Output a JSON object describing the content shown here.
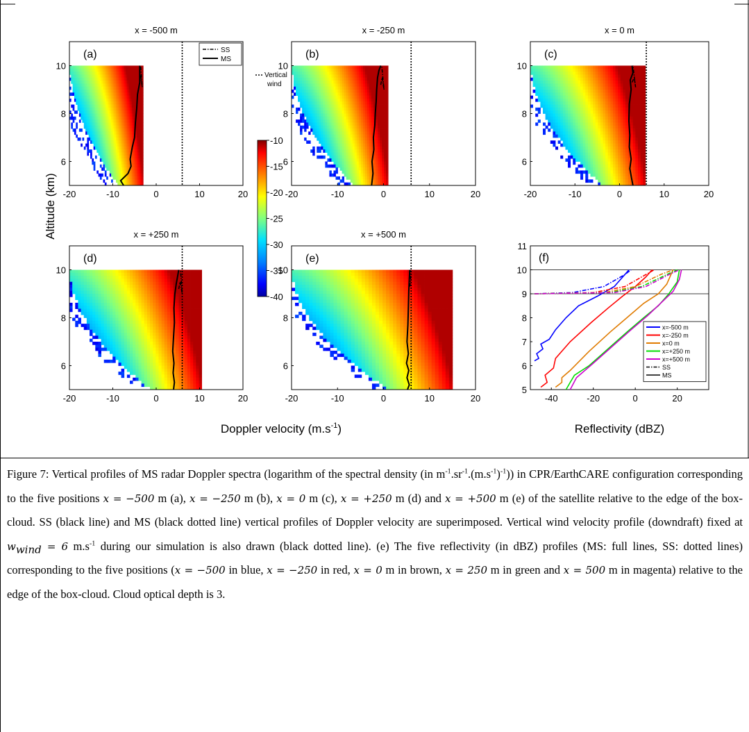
{
  "chart_data": [
    {
      "type": "heatmap",
      "panel": "(a)",
      "title": "x = -500 m",
      "x_range": [
        -20,
        20
      ],
      "y_range": [
        5,
        11
      ],
      "spectrum_x_range": [
        -20,
        -3
      ],
      "edge_x": -3,
      "xticks": [
        "-20",
        "-10",
        "0",
        "10",
        "20"
      ],
      "yticks": [
        "6",
        "8",
        "10"
      ],
      "vertical_wind": 6,
      "ms_profile": {
        "x": [
          -7.5,
          -8.2,
          -6.5,
          -5.8,
          -6.0,
          -5.5,
          -5.0,
          -4.8,
          -4.5,
          -4.3,
          -3.8,
          -3.8
        ],
        "y": [
          5.0,
          5.2,
          5.5,
          5.8,
          6.1,
          6.6,
          7.0,
          7.6,
          8.2,
          8.8,
          9.3,
          10.0
        ]
      },
      "ss_profile": {
        "x": [
          -3.8,
          -3.6,
          -3.2,
          -3.6
        ],
        "y": [
          9.3,
          9.6,
          9.1,
          10.0
        ]
      }
    },
    {
      "type": "heatmap",
      "panel": "(b)",
      "title": "x = -250 m",
      "x_range": [
        -20,
        20
      ],
      "y_range": [
        5,
        11
      ],
      "spectrum_x_range": [
        -20,
        1
      ],
      "edge_x": 1,
      "xticks": [
        "-20",
        "-10",
        "0",
        "10",
        "20"
      ],
      "yticks": [
        "6",
        "8",
        "10"
      ],
      "vertical_wind": 6,
      "ms_profile": {
        "x": [
          -2.6,
          -2.3,
          -2.5,
          -2.1,
          -2.2,
          -1.9,
          -1.8,
          -1.6,
          -1.5,
          -1.3,
          -1.0,
          -0.6
        ],
        "y": [
          5.0,
          5.5,
          6.0,
          6.5,
          7.0,
          7.5,
          8.0,
          8.5,
          9.0,
          9.5,
          9.8,
          10.0
        ]
      },
      "ss_profile": {
        "x": [
          -0.6,
          -0.3,
          0.1,
          -0.4
        ],
        "y": [
          9.2,
          9.5,
          9.0,
          10.0
        ]
      }
    },
    {
      "type": "heatmap",
      "panel": "(c)",
      "title": "x = 0 m",
      "x_range": [
        -20,
        20
      ],
      "y_range": [
        5,
        11
      ],
      "spectrum_x_range": [
        -20,
        5.8
      ],
      "edge_x": 5.8,
      "xticks": [
        "-20",
        "-10",
        "0",
        "10",
        "20"
      ],
      "yticks": [
        "6",
        "8",
        "10"
      ],
      "vertical_wind": 6,
      "ms_profile": {
        "x": [
          3.0,
          2.7,
          2.3,
          2.6,
          2.2,
          2.3,
          2.1,
          2.2,
          2.6,
          2.4,
          3.0,
          2.8
        ],
        "y": [
          5.0,
          5.3,
          5.7,
          6.1,
          6.6,
          7.1,
          7.7,
          8.4,
          9.0,
          9.4,
          9.7,
          10.0
        ]
      },
      "ss_profile": {
        "x": [
          2.8,
          3.3,
          3.6,
          3.0
        ],
        "y": [
          9.3,
          9.5,
          9.1,
          10.0
        ]
      }
    },
    {
      "type": "heatmap",
      "panel": "(d)",
      "title": "x = +250 m",
      "x_range": [
        -20,
        20
      ],
      "y_range": [
        5,
        11
      ],
      "spectrum_x_range": [
        -20,
        10.5
      ],
      "edge_x": 10.5,
      "xticks": [
        "-20",
        "-10",
        "0",
        "10",
        "20"
      ],
      "yticks": [
        "6",
        "8",
        "10"
      ],
      "vertical_wind": 6,
      "ms_profile": {
        "x": [
          4.0,
          4.2,
          3.9,
          4.1,
          3.8,
          4.0,
          4.2,
          4.1,
          4.3,
          4.6,
          5.0,
          5.2
        ],
        "y": [
          5.0,
          5.3,
          5.7,
          6.1,
          6.6,
          7.2,
          7.8,
          8.4,
          9.0,
          9.4,
          9.8,
          10.0
        ]
      },
      "ss_profile": {
        "x": [
          5.2,
          5.5,
          6.0,
          5.6
        ],
        "y": [
          9.2,
          9.5,
          9.0,
          10.0
        ]
      }
    },
    {
      "type": "heatmap",
      "panel": "(e)",
      "title": "x = +500 m",
      "x_range": [
        -20,
        20
      ],
      "y_range": [
        5,
        11
      ],
      "spectrum_x_range": [
        -20,
        15
      ],
      "edge_x": 15,
      "xticks": [
        "-20",
        "-10",
        "0",
        "10",
        "20"
      ],
      "yticks": [
        "6",
        "8",
        "10"
      ],
      "vertical_wind": 6,
      "ms_profile": {
        "x": [
          5.2,
          5.6,
          5.1,
          5.5,
          5.0,
          5.4,
          5.1,
          5.3,
          5.4,
          5.5,
          5.6,
          5.7
        ],
        "y": [
          5.0,
          5.2,
          5.5,
          5.8,
          6.1,
          6.5,
          7.0,
          7.7,
          8.4,
          9.1,
          9.6,
          10.0
        ]
      },
      "ss_profile": {
        "x": [
          5.7,
          5.9,
          5.8
        ],
        "y": [
          9.3,
          9.6,
          10.0
        ]
      }
    },
    {
      "type": "line",
      "panel": "(f)",
      "xlabel": "Reflectivity (dBZ)",
      "x_range": [
        -50,
        35
      ],
      "y_range": [
        5,
        11
      ],
      "xticks": [
        "-40",
        "-20",
        "0",
        "20"
      ],
      "yticks": [
        "5",
        "6",
        "7",
        "8",
        "9",
        "10",
        "11"
      ],
      "hlines": [
        9,
        10
      ],
      "series": [
        {
          "name": "x=-500 m",
          "color": "#0000ff",
          "ms": {
            "x": [
              -48,
              -46,
              -47,
              -44,
              -45,
              -41,
              -38,
              -33,
              -27,
              -18,
              -10,
              -5,
              -3
            ],
            "y": [
              6.2,
              6.3,
              6.5,
              6.7,
              6.9,
              7.1,
              7.5,
              8.0,
              8.5,
              8.9,
              9.3,
              9.8,
              10.0
            ]
          },
          "ss": {
            "x": [
              -48,
              -30,
              -15,
              -5,
              -2
            ],
            "y": [
              9.0,
              9.05,
              9.3,
              9.8,
              10.0
            ]
          }
        },
        {
          "name": "x=-250 m",
          "color": "#ff0000",
          "ms": {
            "x": [
              -45,
              -42,
              -43,
              -39,
              -38,
              -31,
              -21,
              -13,
              -6,
              0,
              5,
              8
            ],
            "y": [
              5.1,
              5.3,
              5.6,
              5.9,
              6.3,
              7.0,
              7.8,
              8.4,
              8.9,
              9.3,
              9.7,
              10.0
            ]
          },
          "ss": {
            "x": [
              -48,
              -20,
              -5,
              5,
              9
            ],
            "y": [
              9.0,
              9.05,
              9.3,
              9.8,
              10.0
            ]
          }
        },
        {
          "name": "x=0 m",
          "color": "#e07b00",
          "ms": {
            "x": [
              -38,
              -35,
              -35,
              -31,
              -22,
              -12,
              -4,
              4,
              11,
              15,
              18
            ],
            "y": [
              5.1,
              5.3,
              5.5,
              5.8,
              6.6,
              7.4,
              8.0,
              8.6,
              9.0,
              9.4,
              10.0
            ]
          },
          "ss": {
            "x": [
              -48,
              -15,
              0,
              12,
              18
            ],
            "y": [
              9.0,
              9.05,
              9.3,
              9.8,
              10.0
            ]
          }
        },
        {
          "name": "x=+250 m",
          "color": "#00dd00",
          "ms": {
            "x": [
              -33,
              -31,
              -29,
              -22,
              -13,
              -4,
              4,
              11,
              16,
              20,
              21
            ],
            "y": [
              5.0,
              5.3,
              5.6,
              6.0,
              6.7,
              7.4,
              8.0,
              8.5,
              9.0,
              9.5,
              10.0
            ]
          },
          "ss": {
            "x": [
              -48,
              -12,
              3,
              15,
              20
            ],
            "y": [
              9.0,
              9.05,
              9.3,
              9.8,
              10.0
            ]
          }
        },
        {
          "name": "x=+500 m",
          "color": "#cc00cc",
          "ms": {
            "x": [
              -31,
              -28,
              -20,
              -11,
              -2,
              6,
              12,
              18,
              21,
              22
            ],
            "y": [
              5.0,
              5.5,
              6.1,
              6.8,
              7.5,
              8.1,
              8.6,
              9.1,
              9.6,
              10.0
            ]
          },
          "ss": {
            "x": [
              -48,
              -10,
              5,
              16,
              21
            ],
            "y": [
              9.0,
              9.05,
              9.3,
              9.8,
              10.0
            ]
          }
        }
      ]
    }
  ],
  "labels": {
    "ylabel": "Altitude (km)",
    "xlabel_doppler": "Doppler velocity (m.s",
    "xlabel_doppler_sup": "-1",
    "xlabel_doppler_end": ")",
    "legend_a_ss": "SS",
    "legend_a_ms": "MS",
    "legend_vw_1": "Vertical",
    "legend_vw_2": "wind",
    "legend_f_ss": "SS",
    "legend_f_ms": "MS"
  },
  "colorbar": {
    "ticks": [
      "-10",
      "-15",
      "-20",
      "-25",
      "-30",
      "-35",
      "-40"
    ],
    "range": [
      -40,
      -10
    ]
  },
  "caption": {
    "t1": "Figure 7: Vertical profiles of MS radar Doppler spectra (logarithm of the spectral density (in m",
    "t2": ".sr",
    "t3": ".(m.s",
    "t4": ")",
    "t5": ")) in CPR/EarthCARE configuration corresponding to the five positions ",
    "m1": "x = −500",
    "t6": " m (a), ",
    "m2": "x = −250",
    "t7": " m (b), ",
    "m3": "x = 0",
    "t8": " m (c), ",
    "m4": "x = +250",
    "t9": " m (d) and ",
    "m5": "x = +500",
    "t10": " m (e) of the satellite relative to the edge of the box-cloud. SS (black line) and MS (black dotted line) vertical profiles of Doppler velocity are superimposed. Vertical wind velocity profile (downdraft) fixed at ",
    "m6": "w",
    "m6sub": "wind",
    "m6b": " = 6",
    "t11": " m.s",
    "t12": " during our simulation is also drawn (black dotted line). (e) The five reflectivity (in dBZ) profiles (MS: full lines, SS: dotted lines) corresponding to the five positions (",
    "m7": "x = −500",
    "t13": " in blue, ",
    "m8": "x = −250",
    "t14": " in red, ",
    "m9": "x = 0",
    "t15": " m in brown, ",
    "m10": "x = 250",
    "t16": " m in green and ",
    "m11": "x = 500",
    "t17": " m in magenta) relative to the edge of the box-cloud. Cloud optical depth is 3.",
    "sup1": "-1",
    "sup2": "-1",
    "sup3": "-1",
    "sup4": "-1",
    "sup5": "-1"
  }
}
